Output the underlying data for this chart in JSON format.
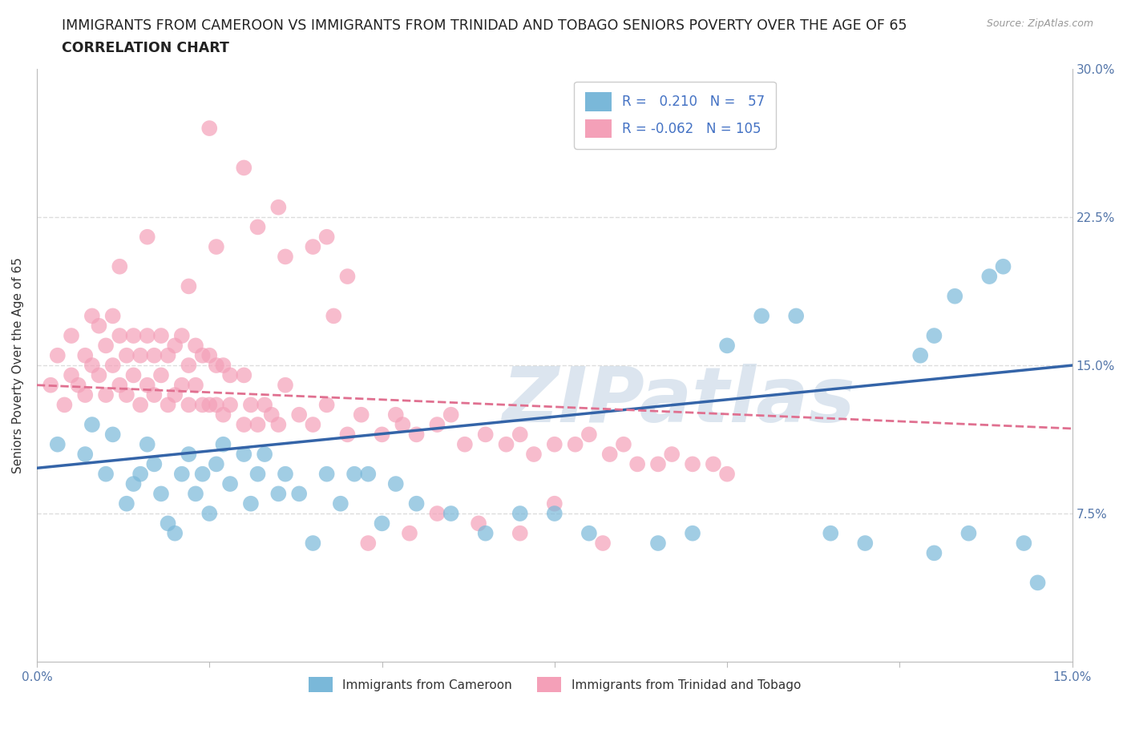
{
  "title_line1": "IMMIGRANTS FROM CAMEROON VS IMMIGRANTS FROM TRINIDAD AND TOBAGO SENIORS POVERTY OVER THE AGE OF 65",
  "title_line2": "CORRELATION CHART",
  "source_text": "Source: ZipAtlas.com",
  "ylabel": "Seniors Poverty Over the Age of 65",
  "xlim": [
    0.0,
    0.15
  ],
  "ylim": [
    0.0,
    0.3
  ],
  "xtick_positions": [
    0.0,
    0.025,
    0.05,
    0.075,
    0.1,
    0.125,
    0.15
  ],
  "xtick_labels": [
    "0.0%",
    "",
    "",
    "",
    "",
    "",
    "15.0%"
  ],
  "ytick_positions": [
    0.0,
    0.075,
    0.15,
    0.225,
    0.3
  ],
  "ytick_labels": [
    "",
    "7.5%",
    "15.0%",
    "22.5%",
    "30.0%"
  ],
  "watermark": "ZIPatlas",
  "color_blue": "#7ab8d9",
  "color_pink": "#f4a0b8",
  "line_color_blue": "#3464a8",
  "line_color_pink": "#e07090",
  "legend_label_blue": "Immigrants from Cameroon",
  "legend_label_pink": "Immigrants from Trinidad and Tobago",
  "R_blue": 0.21,
  "N_blue": 57,
  "R_pink": -0.062,
  "N_pink": 105,
  "blue_x": [
    0.003,
    0.007,
    0.008,
    0.01,
    0.011,
    0.013,
    0.014,
    0.015,
    0.016,
    0.017,
    0.018,
    0.019,
    0.02,
    0.021,
    0.022,
    0.023,
    0.024,
    0.025,
    0.026,
    0.027,
    0.028,
    0.03,
    0.031,
    0.032,
    0.033,
    0.035,
    0.036,
    0.038,
    0.04,
    0.042,
    0.044,
    0.046,
    0.048,
    0.05,
    0.052,
    0.055,
    0.06,
    0.065,
    0.07,
    0.075,
    0.08,
    0.09,
    0.095,
    0.1,
    0.105,
    0.11,
    0.115,
    0.12,
    0.13,
    0.135,
    0.14,
    0.143,
    0.145,
    0.13,
    0.128,
    0.133,
    0.138
  ],
  "blue_y": [
    0.11,
    0.105,
    0.12,
    0.095,
    0.115,
    0.08,
    0.09,
    0.095,
    0.11,
    0.1,
    0.085,
    0.07,
    0.065,
    0.095,
    0.105,
    0.085,
    0.095,
    0.075,
    0.1,
    0.11,
    0.09,
    0.105,
    0.08,
    0.095,
    0.105,
    0.085,
    0.095,
    0.085,
    0.06,
    0.095,
    0.08,
    0.095,
    0.095,
    0.07,
    0.09,
    0.08,
    0.075,
    0.065,
    0.075,
    0.075,
    0.065,
    0.06,
    0.065,
    0.16,
    0.175,
    0.175,
    0.065,
    0.06,
    0.055,
    0.065,
    0.2,
    0.06,
    0.04,
    0.165,
    0.155,
    0.185,
    0.195
  ],
  "pink_x": [
    0.002,
    0.003,
    0.004,
    0.005,
    0.005,
    0.006,
    0.007,
    0.007,
    0.008,
    0.008,
    0.009,
    0.009,
    0.01,
    0.01,
    0.011,
    0.011,
    0.012,
    0.012,
    0.013,
    0.013,
    0.014,
    0.014,
    0.015,
    0.015,
    0.016,
    0.016,
    0.017,
    0.017,
    0.018,
    0.018,
    0.019,
    0.019,
    0.02,
    0.02,
    0.021,
    0.021,
    0.022,
    0.022,
    0.023,
    0.023,
    0.024,
    0.024,
    0.025,
    0.025,
    0.026,
    0.026,
    0.027,
    0.027,
    0.028,
    0.028,
    0.03,
    0.03,
    0.031,
    0.032,
    0.033,
    0.034,
    0.035,
    0.036,
    0.038,
    0.04,
    0.042,
    0.043,
    0.045,
    0.047,
    0.05,
    0.052,
    0.053,
    0.055,
    0.058,
    0.06,
    0.062,
    0.065,
    0.068,
    0.07,
    0.072,
    0.075,
    0.078,
    0.08,
    0.083,
    0.085,
    0.087,
    0.09,
    0.092,
    0.095,
    0.098,
    0.1,
    0.025,
    0.03,
    0.035,
    0.04,
    0.045,
    0.012,
    0.016,
    0.022,
    0.026,
    0.032,
    0.036,
    0.042,
    0.048,
    0.054,
    0.058,
    0.064,
    0.07,
    0.075,
    0.082
  ],
  "pink_y": [
    0.14,
    0.155,
    0.13,
    0.145,
    0.165,
    0.14,
    0.155,
    0.135,
    0.15,
    0.175,
    0.145,
    0.17,
    0.135,
    0.16,
    0.15,
    0.175,
    0.14,
    0.165,
    0.135,
    0.155,
    0.145,
    0.165,
    0.13,
    0.155,
    0.14,
    0.165,
    0.135,
    0.155,
    0.145,
    0.165,
    0.13,
    0.155,
    0.135,
    0.16,
    0.14,
    0.165,
    0.13,
    0.15,
    0.14,
    0.16,
    0.13,
    0.155,
    0.13,
    0.155,
    0.13,
    0.15,
    0.125,
    0.15,
    0.13,
    0.145,
    0.12,
    0.145,
    0.13,
    0.12,
    0.13,
    0.125,
    0.12,
    0.14,
    0.125,
    0.12,
    0.13,
    0.175,
    0.115,
    0.125,
    0.115,
    0.125,
    0.12,
    0.115,
    0.12,
    0.125,
    0.11,
    0.115,
    0.11,
    0.115,
    0.105,
    0.11,
    0.11,
    0.115,
    0.105,
    0.11,
    0.1,
    0.1,
    0.105,
    0.1,
    0.1,
    0.095,
    0.27,
    0.25,
    0.23,
    0.21,
    0.195,
    0.2,
    0.215,
    0.19,
    0.21,
    0.22,
    0.205,
    0.215,
    0.06,
    0.065,
    0.075,
    0.07,
    0.065,
    0.08,
    0.06
  ],
  "grid_color": "#dddddd",
  "bg_color": "#ffffff",
  "title_fontsize": 12.5,
  "subtitle_fontsize": 12.5,
  "axis_label_fontsize": 11,
  "tick_fontsize": 11,
  "watermark_color": "#c5d5e5",
  "watermark_fontsize": 70,
  "blue_trend_start_y": 0.098,
  "blue_trend_end_y": 0.15,
  "pink_trend_start_y": 0.14,
  "pink_trend_end_y": 0.118
}
